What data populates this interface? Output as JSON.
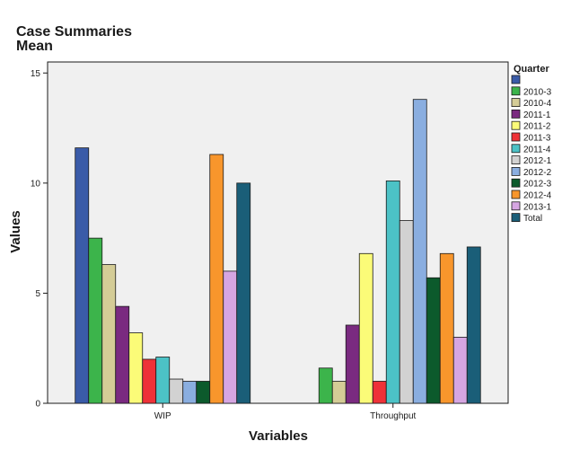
{
  "chart_data": {
    "type": "bar",
    "title": "Case Summaries",
    "subtitle": "Mean",
    "xlabel": "Variables",
    "ylabel": "Values",
    "ylim": [
      0,
      15.5
    ],
    "yticks": [
      0,
      5,
      10,
      15
    ],
    "categories": [
      "WIP",
      "Throughput"
    ],
    "legend": {
      "title": "Quarter",
      "placement": "right"
    },
    "series": [
      {
        "name": "",
        "color": "#3a5ba8",
        "values": [
          11.6,
          null
        ]
      },
      {
        "name": "2010-3",
        "color": "#3cb44b",
        "values": [
          7.5,
          1.6
        ]
      },
      {
        "name": "2010-4",
        "color": "#d4cc96",
        "values": [
          6.3,
          1.0
        ]
      },
      {
        "name": "2011-1",
        "color": "#7a2a80",
        "values": [
          4.4,
          3.55
        ]
      },
      {
        "name": "2011-2",
        "color": "#fbfb78",
        "values": [
          3.2,
          6.8
        ]
      },
      {
        "name": "2011-3",
        "color": "#ee3238",
        "values": [
          2.0,
          1.0
        ]
      },
      {
        "name": "2011-4",
        "color": "#4cc2c6",
        "values": [
          2.1,
          10.1
        ]
      },
      {
        "name": "2012-1",
        "color": "#d2d2d2",
        "values": [
          1.1,
          8.3
        ]
      },
      {
        "name": "2012-2",
        "color": "#8aaee0",
        "values": [
          1.0,
          13.8
        ]
      },
      {
        "name": "2012-3",
        "color": "#0c5a2c",
        "values": [
          1.0,
          5.7
        ]
      },
      {
        "name": "2012-4",
        "color": "#f8962c",
        "values": [
          11.3,
          6.8
        ]
      },
      {
        "name": "2013-1",
        "color": "#d6a6e2",
        "values": [
          6.0,
          3.0
        ]
      },
      {
        "name": "Total",
        "color": "#1a5e78",
        "values": [
          10.0,
          7.1
        ]
      }
    ]
  }
}
